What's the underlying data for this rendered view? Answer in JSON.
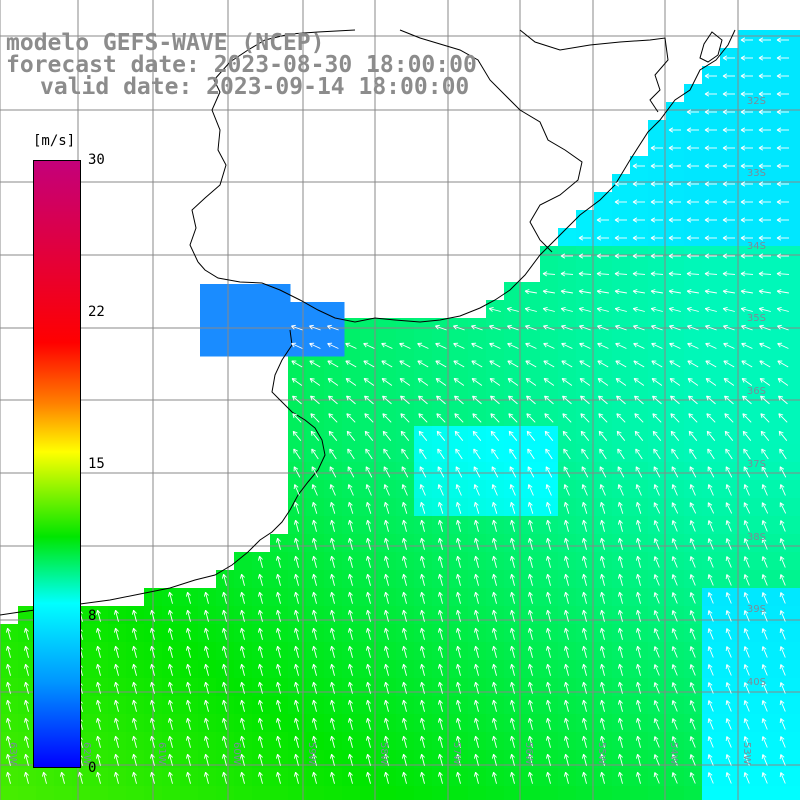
{
  "title": {
    "line1": "modelo GEFS-WAVE (NCEP)",
    "line2": "forecast date: 2023-08-30 18:00:00",
    "line3": "valid date: 2023-09-14 18:00:00"
  },
  "colorbar": {
    "unit": "[m/s]",
    "ticks": [
      "30",
      "22",
      "15",
      "8",
      "0"
    ],
    "colors": [
      "#c4007a",
      "#ff0000",
      "#ff8000",
      "#ffff00",
      "#00e600",
      "#00ffff",
      "#0096ff",
      "#0000ff"
    ]
  },
  "lat_labels": [
    "32S",
    "33S",
    "34S",
    "35S",
    "36S",
    "37S",
    "38S",
    "39S",
    "40S"
  ],
  "lon_labels": [
    "63W",
    "62W",
    "61W",
    "60W",
    "59W",
    "58W",
    "57W",
    "56W",
    "55W",
    "54W",
    "53W"
  ],
  "colors": {
    "land": "#ffffff",
    "grid": "#888888",
    "coast": "#000000",
    "arrows": "#ffffff",
    "title": "#8c8c8c"
  }
}
